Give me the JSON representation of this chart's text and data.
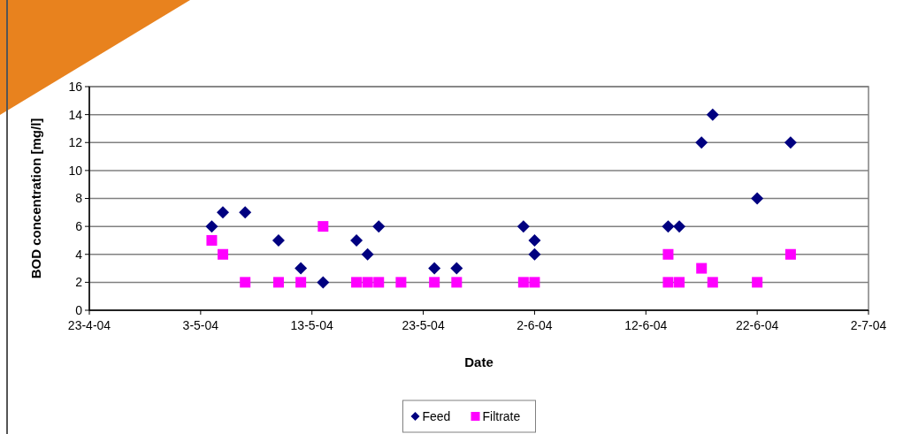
{
  "chart_data": {
    "type": "scatter",
    "xlabel": "Date",
    "ylabel": "BOD concentration [mg/l]",
    "xlim": [
      "--04-23",
      "--07-02"
    ],
    "xticks": [
      {
        "value": "--04-23",
        "label": "23-4-04"
      },
      {
        "value": "--05-03",
        "label": "3-5-04"
      },
      {
        "value": "--05-13",
        "label": "13-5-04"
      },
      {
        "value": "--05-23",
        "label": "23-5-04"
      },
      {
        "value": "--06-02",
        "label": "2-6-04"
      },
      {
        "value": "--06-12",
        "label": "12-6-04"
      },
      {
        "value": "--06-22",
        "label": "22-6-04"
      },
      {
        "value": "--07-02",
        "label": "2-7-04"
      }
    ],
    "ylim": [
      0,
      16
    ],
    "yticks": [
      0,
      2,
      4,
      6,
      8,
      10,
      12,
      14,
      16
    ],
    "grid": "y",
    "legend": "bottom",
    "series": [
      {
        "name": "Feed",
        "color": "#000080",
        "marker": "diamond",
        "x": [
          "--05-04",
          "--05-05",
          "--05-07",
          "--05-10",
          "--05-12",
          "--05-14",
          "--05-17",
          "--05-18",
          "--05-19",
          "--05-24",
          "--05-26",
          "--06-01",
          "--06-02",
          "--06-02",
          "--06-14",
          "--06-15",
          "--06-17",
          "--06-18",
          "--06-22",
          "--06-25"
        ],
        "values": [
          6,
          7,
          7,
          5,
          3,
          2,
          5,
          4,
          6,
          3,
          3,
          6,
          5,
          4,
          6,
          6,
          12,
          14,
          8,
          12
        ]
      },
      {
        "name": "Filtrate",
        "color": "#ff00ff",
        "marker": "square",
        "x": [
          "--05-04",
          "--05-05",
          "--05-07",
          "--05-10",
          "--05-12",
          "--05-14",
          "--05-17",
          "--05-18",
          "--05-19",
          "--05-21",
          "--05-24",
          "--05-26",
          "--06-01",
          "--06-02",
          "--06-14",
          "--06-14",
          "--06-15",
          "--06-17",
          "--06-18",
          "--06-22",
          "--06-25"
        ],
        "values": [
          5,
          4,
          2,
          2,
          2,
          6,
          2,
          2,
          2,
          2,
          2,
          2,
          2,
          2,
          4,
          2,
          2,
          3,
          2,
          2,
          4
        ]
      }
    ]
  }
}
